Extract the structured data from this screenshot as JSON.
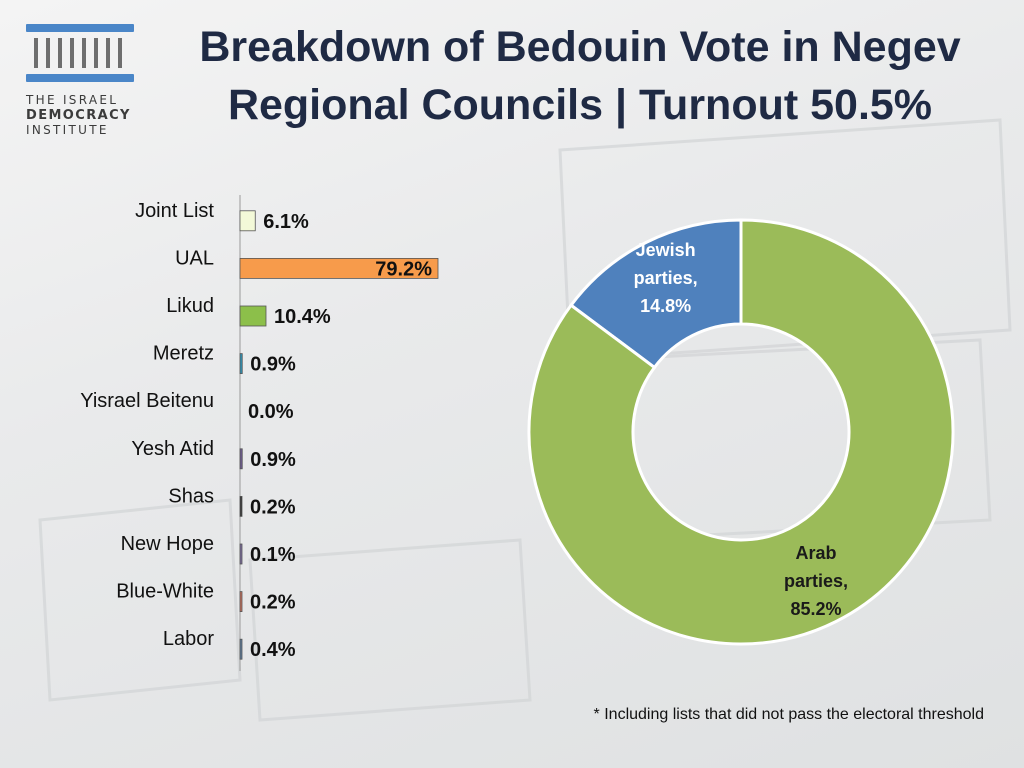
{
  "header": {
    "title_line1": "Breakdown of Bedouin Vote in Negev",
    "title_line2": "Regional Councils | Turnout 50.5%"
  },
  "logo": {
    "line1": "THE ISRAEL",
    "line2": "DEMOCRACY",
    "line3": "INSTITUTE",
    "icon": "columns-building-icon",
    "color": "#4a86c8"
  },
  "footnote": "* Including lists that did not pass the electoral threshold",
  "chart_data": [
    {
      "type": "bar",
      "orientation": "horizontal",
      "categories": [
        "Joint List",
        "UAL",
        "Likud",
        "Meretz",
        "Yisrael Beitenu",
        "Yesh Atid",
        "Shas",
        "New Hope",
        "Blue-White",
        "Labor"
      ],
      "values": [
        6.1,
        79.2,
        10.4,
        0.9,
        0.0,
        0.9,
        0.2,
        0.1,
        0.2,
        0.4
      ],
      "labels": [
        "6.1%",
        "79.2%",
        "10.4%",
        "0.9%",
        "0.0%",
        "0.9%",
        "0.2%",
        "0.1%",
        "0.2%",
        "0.4%"
      ],
      "colors": [
        "#f3f9d8",
        "#f79b4b",
        "#8cbf4a",
        "#2f8fb0",
        "#888888",
        "#6b5a8c",
        "#333333",
        "#7a6a9c",
        "#c8705a",
        "#5b7a99"
      ],
      "xlim": [
        0,
        80
      ],
      "grid": false
    },
    {
      "type": "pie",
      "donut": true,
      "categories": [
        "Jewish parties",
        "Arab parties"
      ],
      "values": [
        14.8,
        85.2
      ],
      "labels": [
        [
          "Jewish",
          "parties,",
          "14.8%"
        ],
        [
          "Arab",
          "parties,",
          "85.2%"
        ]
      ],
      "colors": [
        "#4f81bd",
        "#9bbb59"
      ],
      "label_colors": [
        "#ffffff",
        "#1a1a1a"
      ]
    }
  ]
}
